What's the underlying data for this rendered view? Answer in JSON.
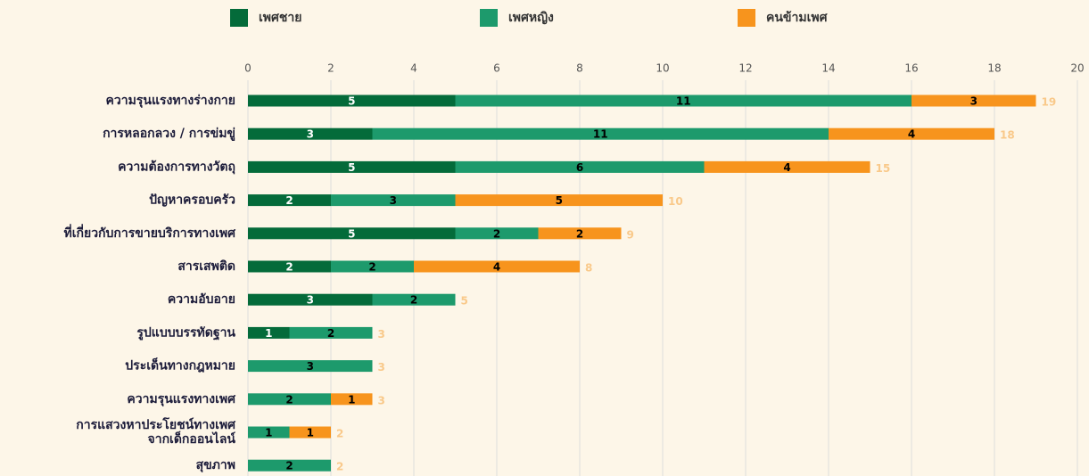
{
  "chart_data": {
    "type": "stacked_barh",
    "categories": [
      "ความรุนแรงทางร่างกาย",
      "การหลอกลวง / การข่มขู่",
      "ความต้องการทางวัตถุ",
      "ปัญหาครอบครัว",
      "ที่เกี่ยวกับการขายบริการทางเพศ",
      "สารเสพติด",
      "ความอับอาย",
      "รูปแบบบรรทัดฐาน",
      "ประเด็นทางกฎหมาย",
      "ความรุนแรงทางเพศ",
      "การแสวงหาประโยชน์ทางเพศ\nจากเด็กออนไลน์",
      "สุขภาพ"
    ],
    "series": [
      {
        "name": "เพศชาย",
        "color": "#046b3a",
        "label_color": "#ffffff",
        "values": [
          5,
          3,
          5,
          2,
          5,
          2,
          3,
          1,
          null,
          null,
          null,
          null
        ]
      },
      {
        "name": "เพศหญิง",
        "color": "#1d9a6c",
        "label_color": "#000000",
        "values": [
          11,
          11,
          6,
          3,
          2,
          2,
          2,
          2,
          3,
          2,
          1,
          2
        ]
      },
      {
        "name": "คนข้ามเพศ",
        "color": "#f7941d",
        "label_color": "#000000",
        "values": [
          3,
          4,
          4,
          5,
          2,
          4,
          null,
          null,
          null,
          1,
          1,
          null
        ]
      }
    ],
    "totals": [
      19,
      18,
      15,
      10,
      9,
      8,
      5,
      3,
      3,
      3,
      2,
      2
    ],
    "xlim": [
      0,
      20
    ],
    "xticks": [
      0,
      2,
      4,
      6,
      8,
      10,
      12,
      14,
      16,
      18,
      20
    ],
    "grid": true,
    "legend": "top"
  }
}
